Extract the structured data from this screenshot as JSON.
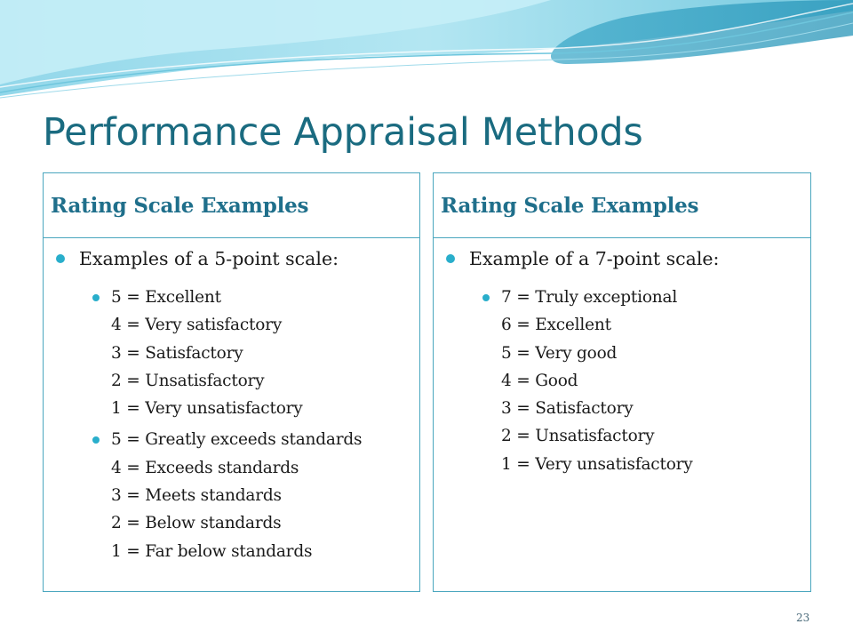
{
  "slide": {
    "title": "Performance Appraisal Methods",
    "page_number": "23"
  },
  "left_panel": {
    "heading": "Rating Scale Examples",
    "intro": "Examples of a 5-point scale:",
    "groups": [
      [
        "5 = Excellent",
        "4 = Very satisfactory",
        "3 = Satisfactory",
        "2 = Unsatisfactory",
        "1 = Very unsatisfactory"
      ],
      [
        "5 = Greatly exceeds standards",
        "4 = Exceeds standards",
        "3 = Meets standards",
        "2 = Below standards",
        "1 = Far below standards"
      ]
    ]
  },
  "right_panel": {
    "heading": "Rating Scale Examples",
    "intro": "Example of a 7-point scale:",
    "groups": [
      [
        "7 = Truly exceptional",
        "6 = Excellent",
        "5 = Very good",
        "4 = Good",
        "3 = Satisfactory",
        "2 = Unsatisfactory",
        "1 = Very unsatisfactory"
      ]
    ]
  },
  "colors": {
    "title": "#1a6b80",
    "heading": "#1f6f8b",
    "border": "#4aa6be",
    "bullet": "#29aecb"
  },
  "icons": {
    "decoration": "wave-header-decoration",
    "bullet": "bullet-dot-icon"
  }
}
